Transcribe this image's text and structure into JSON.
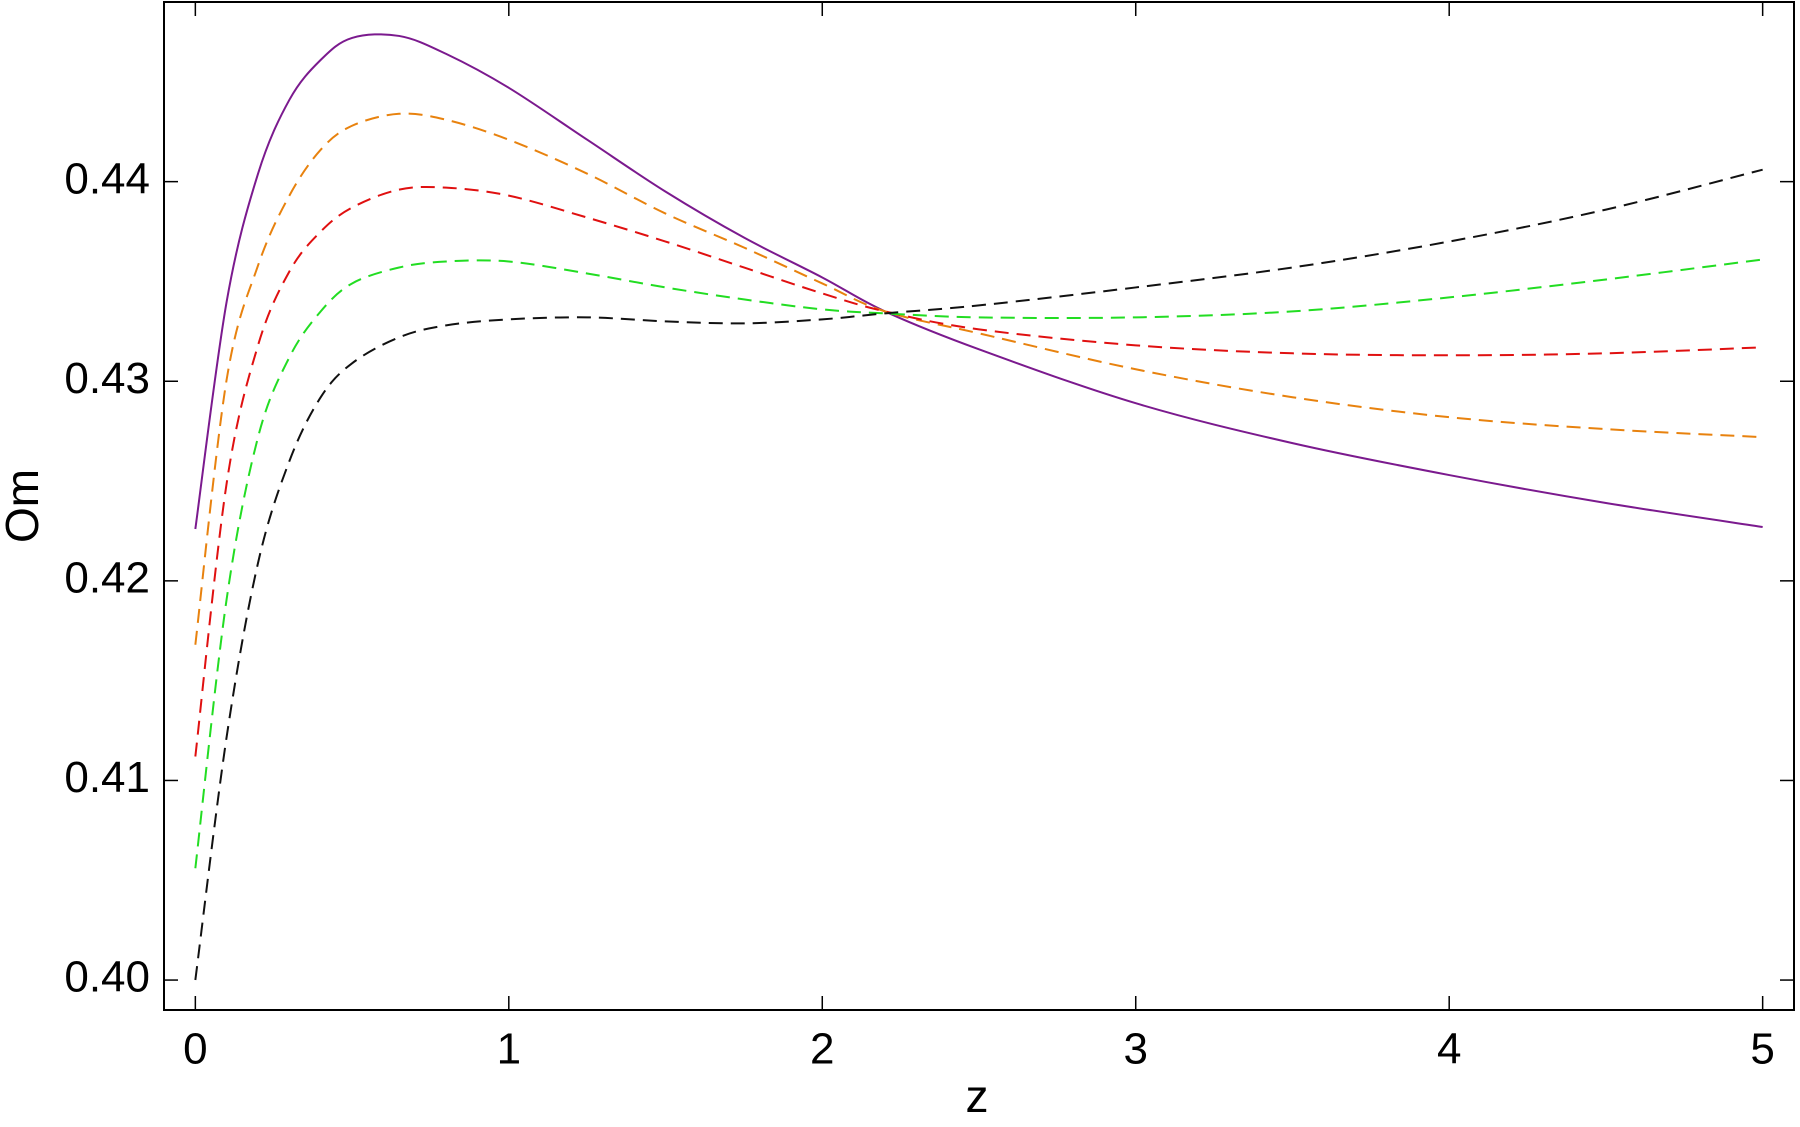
{
  "chart_data": {
    "type": "line",
    "x_label": "z",
    "y_label": "Om",
    "xlim": [
      -0.1,
      5.1
    ],
    "ylim": [
      0.3985,
      0.449
    ],
    "xticks": [
      0,
      1,
      2,
      3,
      4,
      5
    ],
    "yticks": [
      {
        "value": 0.4,
        "label": "0.40"
      },
      0.41,
      0.42,
      0.43,
      0.44
    ],
    "x": [
      0,
      0.1,
      0.2,
      0.3,
      0.4,
      0.5,
      0.65,
      0.8,
      1,
      1.25,
      1.5,
      1.75,
      2,
      2.2,
      2.5,
      3,
      3.5,
      4,
      4.5,
      5
    ],
    "series": [
      {
        "color": "#7b1a8e",
        "dashed": false,
        "values": [
          0.4226,
          0.434,
          0.4404,
          0.4441,
          0.4461,
          0.4472,
          0.4473,
          0.4464,
          0.4447,
          0.4421,
          0.4395,
          0.4372,
          0.4352,
          0.4335,
          0.4316,
          0.4289,
          0.4269,
          0.4253,
          0.4239,
          0.4227
        ]
      },
      {
        "color": "#e8820e",
        "dashed": true,
        "values": [
          0.4168,
          0.4301,
          0.4358,
          0.4393,
          0.4416,
          0.4428,
          0.4434,
          0.4431,
          0.4421,
          0.4404,
          0.4384,
          0.4367,
          0.4349,
          0.4335,
          0.4324,
          0.4306,
          0.4292,
          0.4282,
          0.4276,
          0.4272
        ]
      },
      {
        "color": "#e01010",
        "dashed": true,
        "values": [
          0.4112,
          0.4249,
          0.4318,
          0.4355,
          0.4375,
          0.4387,
          0.4396,
          0.4397,
          0.4393,
          0.4382,
          0.437,
          0.4357,
          0.4344,
          0.4335,
          0.4326,
          0.4318,
          0.4314,
          0.4313,
          0.4314,
          0.4317
        ]
      },
      {
        "color": "#22dd22",
        "dashed": true,
        "values": [
          0.4056,
          0.4191,
          0.4272,
          0.4312,
          0.4335,
          0.4349,
          0.4357,
          0.436,
          0.436,
          0.4354,
          0.4347,
          0.4341,
          0.4336,
          0.4334,
          0.4332,
          0.4332,
          0.4335,
          0.4342,
          0.4351,
          0.4361
        ]
      },
      {
        "color": "#111111",
        "dashed": true,
        "values": [
          0.4,
          0.4122,
          0.4209,
          0.426,
          0.4292,
          0.4309,
          0.4322,
          0.4328,
          0.4331,
          0.4332,
          0.433,
          0.4329,
          0.4331,
          0.4334,
          0.4338,
          0.4347,
          0.4357,
          0.437,
          0.4386,
          0.4406
        ]
      }
    ]
  }
}
